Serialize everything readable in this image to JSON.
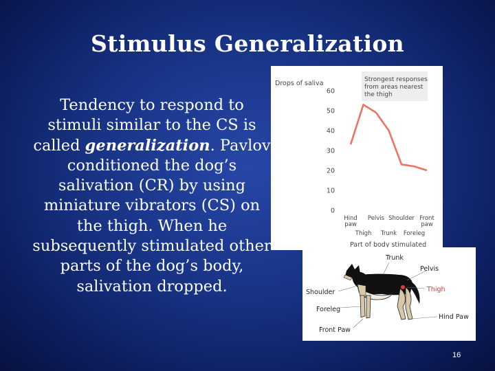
{
  "slide": {
    "title": "Stimulus Generalization",
    "body_intro": "Tendency to respond to stimuli similar to the CS is called ",
    "body_emphasis": "generalization",
    "body_rest": ". Pavlov conditioned the dog’s salivation (CR) by using miniature vibrators (CS) on the thigh. When he subsequently stimulated other parts of the dog’s body, salivation dropped.",
    "page_number": "16"
  },
  "colors": {
    "background": "#183384",
    "line": "#ec7462",
    "annotation_box": "#eeeeee"
  },
  "chart_data": {
    "type": "line",
    "ylabel": "Drops of saliva",
    "xlabel": "Part of body stimulated",
    "ylim": [
      0,
      60
    ],
    "yticks": [
      0,
      10,
      20,
      30,
      40,
      50,
      60
    ],
    "categories": [
      "Hind paw",
      "Thigh",
      "Pelvis",
      "Trunk",
      "Shoulder",
      "Foreleg",
      "Front paw"
    ],
    "category_lines": [
      [
        "Hind",
        "paw"
      ],
      [
        "Thigh"
      ],
      [
        "Pelvis"
      ],
      [
        "Trunk"
      ],
      [
        "Shoulder"
      ],
      [
        "Foreleg"
      ],
      [
        "Front",
        "paw"
      ]
    ],
    "values": [
      33,
      53,
      49,
      40,
      23,
      22,
      20
    ],
    "annotation": [
      "Strongest responses",
      "from areas nearest",
      "the thigh"
    ],
    "grid": false
  },
  "dog_diagram": {
    "labels": {
      "trunk": "Trunk",
      "pelvis": "Pelvis",
      "thigh": "Thigh",
      "shoulder": "Shoulder",
      "foreleg": "Foreleg",
      "front_paw": "Front Paw",
      "hind_paw": "Hind Paw"
    },
    "highlight_color": "#e23b3b"
  }
}
